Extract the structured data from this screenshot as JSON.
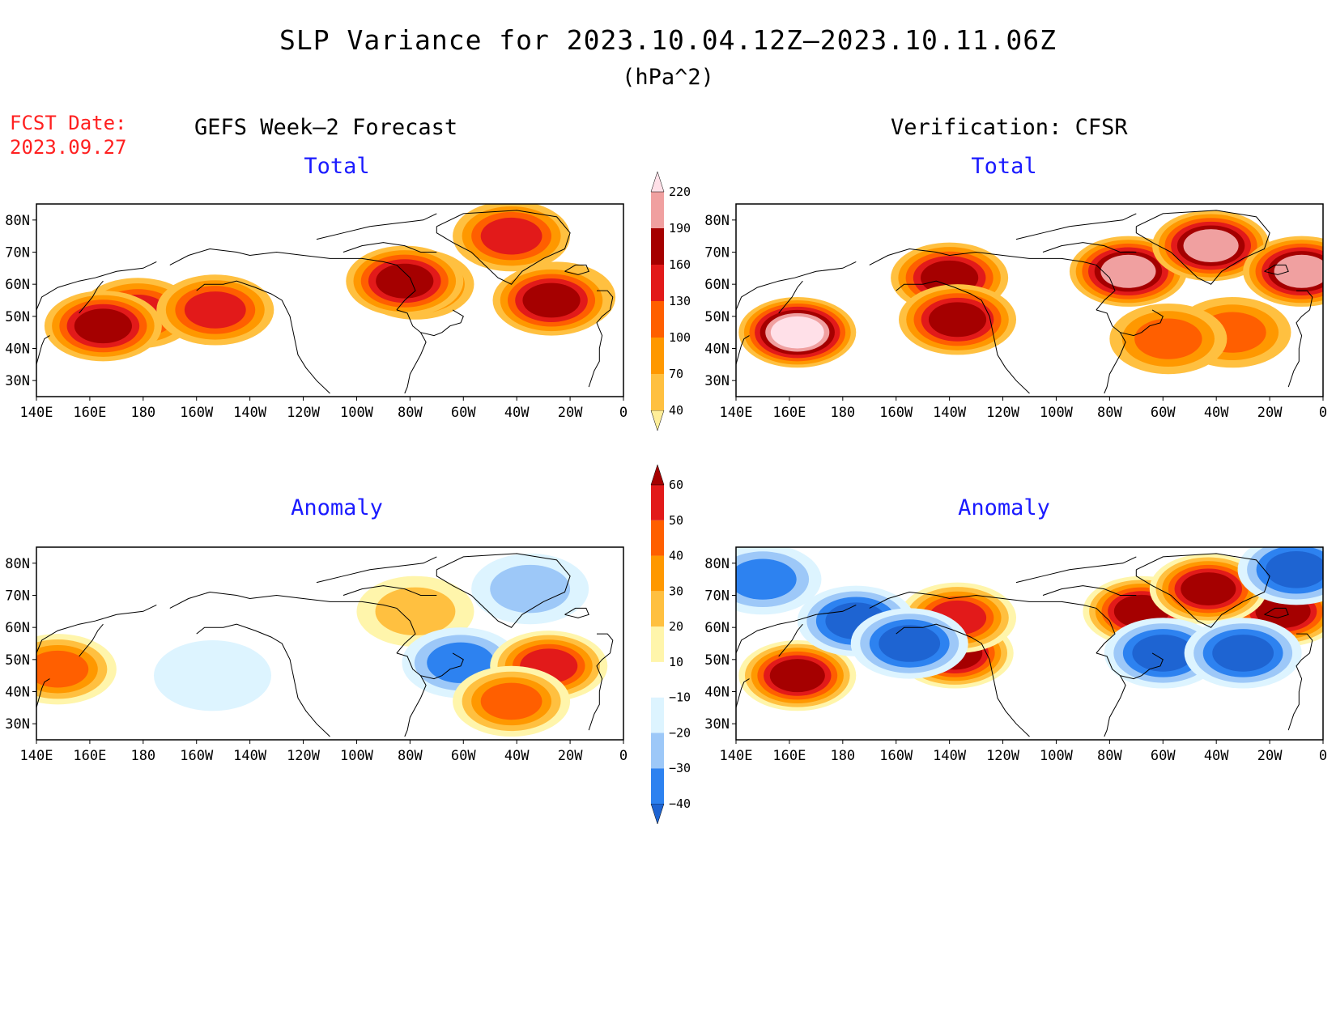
{
  "title": "SLP Variance for 2023.10.04.12Z–2023.10.11.06Z",
  "units": "(hPa^2)",
  "forecast_date_label": "FCST Date:",
  "forecast_date": "2023.09.27",
  "left_column_title": "GEFS Week–2 Forecast",
  "right_column_title": "Verification: CFSR",
  "colors": {
    "text": "#000000",
    "forecast_date": "#ff2020",
    "panel_title": "#1a1aff"
  },
  "chart_data": [
    {
      "type": "heatmap",
      "title": "Total",
      "column": "GEFS Week–2 Forecast",
      "x_tick_labels": [
        "140E",
        "160E",
        "180",
        "160W",
        "140W",
        "120W",
        "100W",
        "80W",
        "60W",
        "40W",
        "20W",
        "0"
      ],
      "y_tick_labels": [
        "30N",
        "40N",
        "50N",
        "60N",
        "70N",
        "80N"
      ],
      "xlim_lon_east": [
        140,
        360
      ],
      "ylim_lat": [
        25,
        85
      ],
      "colorbar": "total",
      "features": [
        {
          "lon": 178,
          "lat": 51,
          "value": 130
        },
        {
          "lon": 207,
          "lat": 52,
          "value": 130
        },
        {
          "lon": 282,
          "lat": 60,
          "value": 130
        },
        {
          "lon": 335,
          "lat": 56,
          "value": 130
        },
        {
          "lon": 318,
          "lat": 75,
          "value": 130
        },
        {
          "lon": 165,
          "lat": 47,
          "value": 160
        },
        {
          "lon": 278,
          "lat": 61,
          "value": 160
        },
        {
          "lon": 333,
          "lat": 55,
          "value": 160
        }
      ]
    },
    {
      "type": "heatmap",
      "title": "Total",
      "column": "Verification: CFSR",
      "x_tick_labels": [
        "140E",
        "160E",
        "180",
        "160W",
        "140W",
        "120W",
        "100W",
        "80W",
        "60W",
        "40W",
        "20W",
        "0"
      ],
      "y_tick_labels": [
        "30N",
        "40N",
        "50N",
        "60N",
        "70N",
        "80N"
      ],
      "xlim_lon_east": [
        140,
        360
      ],
      "ylim_lat": [
        25,
        85
      ],
      "colorbar": "total",
      "features": [
        {
          "lon": 163,
          "lat": 45,
          "value": 220
        },
        {
          "lon": 220,
          "lat": 62,
          "value": 160
        },
        {
          "lon": 223,
          "lat": 49,
          "value": 160
        },
        {
          "lon": 287,
          "lat": 64,
          "value": 190
        },
        {
          "lon": 318,
          "lat": 72,
          "value": 190
        },
        {
          "lon": 352,
          "lat": 64,
          "value": 190
        },
        {
          "lon": 326,
          "lat": 45,
          "value": 100
        },
        {
          "lon": 302,
          "lat": 43,
          "value": 100
        }
      ]
    },
    {
      "type": "heatmap",
      "title": "Anomaly",
      "column": "GEFS Week–2 Forecast",
      "x_tick_labels": [
        "140E",
        "160E",
        "180",
        "160W",
        "140W",
        "120W",
        "100W",
        "80W",
        "60W",
        "40W",
        "20W",
        "0"
      ],
      "y_tick_labels": [
        "30N",
        "40N",
        "50N",
        "60N",
        "70N",
        "80N"
      ],
      "xlim_lon_east": [
        140,
        360
      ],
      "ylim_lat": [
        25,
        85
      ],
      "colorbar": "anomaly",
      "features": [
        {
          "lon": 148,
          "lat": 47,
          "value": 40
        },
        {
          "lon": 282,
          "lat": 65,
          "value": 20
        },
        {
          "lon": 299,
          "lat": 49,
          "value": -30
        },
        {
          "lon": 332,
          "lat": 48,
          "value": 50
        },
        {
          "lon": 318,
          "lat": 37,
          "value": 40
        },
        {
          "lon": 325,
          "lat": 72,
          "value": -20
        },
        {
          "lon": 206,
          "lat": 45,
          "value": -10
        }
      ]
    },
    {
      "type": "heatmap",
      "title": "Anomaly",
      "column": "Verification: CFSR",
      "x_tick_labels": [
        "140E",
        "160E",
        "180",
        "160W",
        "140W",
        "120W",
        "100W",
        "80W",
        "60W",
        "40W",
        "20W",
        "0"
      ],
      "y_tick_labels": [
        "30N",
        "40N",
        "50N",
        "60N",
        "70N",
        "80N"
      ],
      "xlim_lon_east": [
        140,
        360
      ],
      "ylim_lat": [
        25,
        85
      ],
      "colorbar": "anomaly",
      "features": [
        {
          "lon": 163,
          "lat": 45,
          "value": 60
        },
        {
          "lon": 222,
          "lat": 52,
          "value": 60
        },
        {
          "lon": 223,
          "lat": 63,
          "value": 50
        },
        {
          "lon": 292,
          "lat": 65,
          "value": 60
        },
        {
          "lon": 345,
          "lat": 65,
          "value": 60
        },
        {
          "lon": 317,
          "lat": 72,
          "value": 60
        },
        {
          "lon": 300,
          "lat": 52,
          "value": -40
        },
        {
          "lon": 330,
          "lat": 52,
          "value": -40
        },
        {
          "lon": 185,
          "lat": 62,
          "value": -40
        },
        {
          "lon": 205,
          "lat": 55,
          "value": -40
        },
        {
          "lon": 150,
          "lat": 75,
          "value": -30
        },
        {
          "lon": 350,
          "lat": 78,
          "value": -40
        }
      ]
    }
  ],
  "colorbars": {
    "total": {
      "levels": [
        "40",
        "70",
        "100",
        "130",
        "160",
        "190",
        "220"
      ],
      "colors": [
        "#ffee99",
        "#ffc040",
        "#ff9800",
        "#ff5f00",
        "#e21a1a",
        "#a50000",
        "#f0a0a0",
        "#ffe0e8"
      ]
    },
    "anomaly": {
      "levels": [
        "−40",
        "−30",
        "−20",
        "−10",
        "10",
        "20",
        "30",
        "40",
        "50",
        "60"
      ],
      "colors": [
        "#1e64d2",
        "#2d82f0",
        "#9dc8f8",
        "#ddf4ff",
        "#ffffff",
        "#fff5ab",
        "#ffc040",
        "#ff9800",
        "#ff5f00",
        "#e21a1a",
        "#a50000"
      ]
    }
  }
}
